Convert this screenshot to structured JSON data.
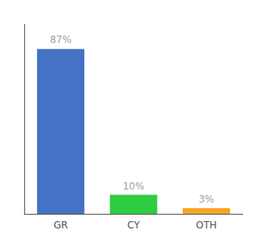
{
  "chart_data": {
    "type": "bar",
    "categories": [
      "GR",
      "CY",
      "OTH"
    ],
    "values": [
      87,
      10,
      3
    ],
    "value_labels": [
      "87%",
      "10%",
      "3%"
    ],
    "colors": [
      "#4472c4",
      "#2ecc40",
      "#f5a623"
    ],
    "ylim": [
      0,
      100
    ],
    "data_labels": true,
    "tick_labels": "x",
    "grid": false
  }
}
